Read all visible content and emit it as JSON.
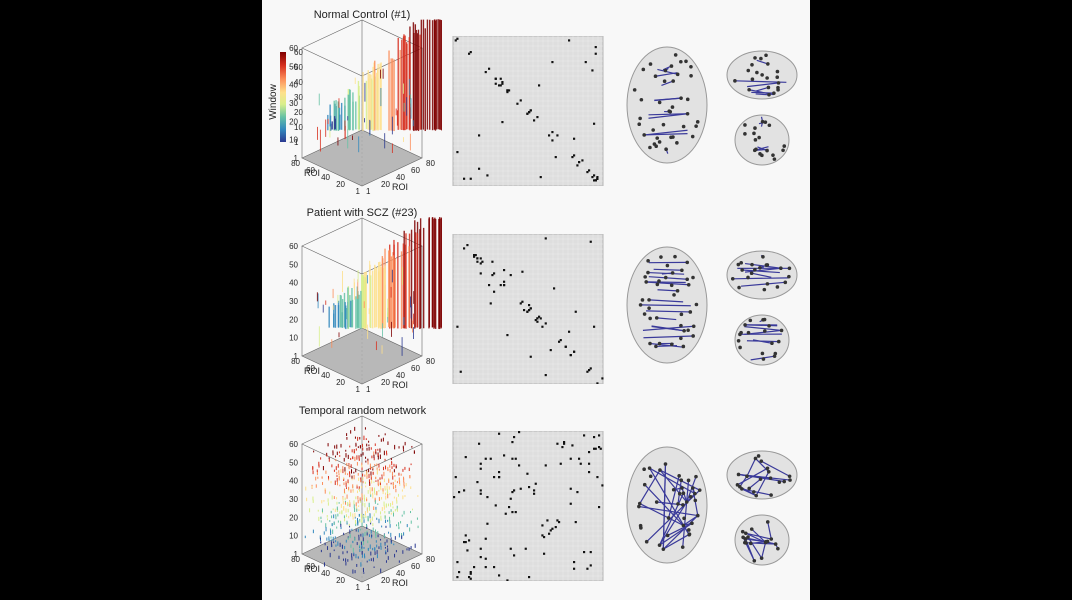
{
  "figure": {
    "rows": [
      {
        "title": "Normal Control (#1)"
      },
      {
        "title": "Patient with SCZ (#23)"
      },
      {
        "title": "Temporal random network"
      }
    ],
    "axes3d": {
      "z_ticks": [
        "60",
        "50",
        "40",
        "30",
        "20",
        "10",
        "1"
      ],
      "xy_ticks_left": [
        "80",
        "60",
        "40",
        "20",
        "1"
      ],
      "xy_ticks_right": [
        "1",
        "20",
        "40",
        "60",
        "80"
      ],
      "roi_label": "ROI"
    },
    "colorbar": {
      "label": "Window",
      "ticks": [
        "60",
        "50",
        "40",
        "30",
        "20",
        "10",
        "1"
      ],
      "colors": [
        "#7f0000",
        "#d7301f",
        "#fc8d59",
        "#fee08b",
        "#d9ef8b",
        "#66c2a5",
        "#3288bd",
        "#2b3990"
      ]
    },
    "edge_color": "#3a3a9a"
  }
}
